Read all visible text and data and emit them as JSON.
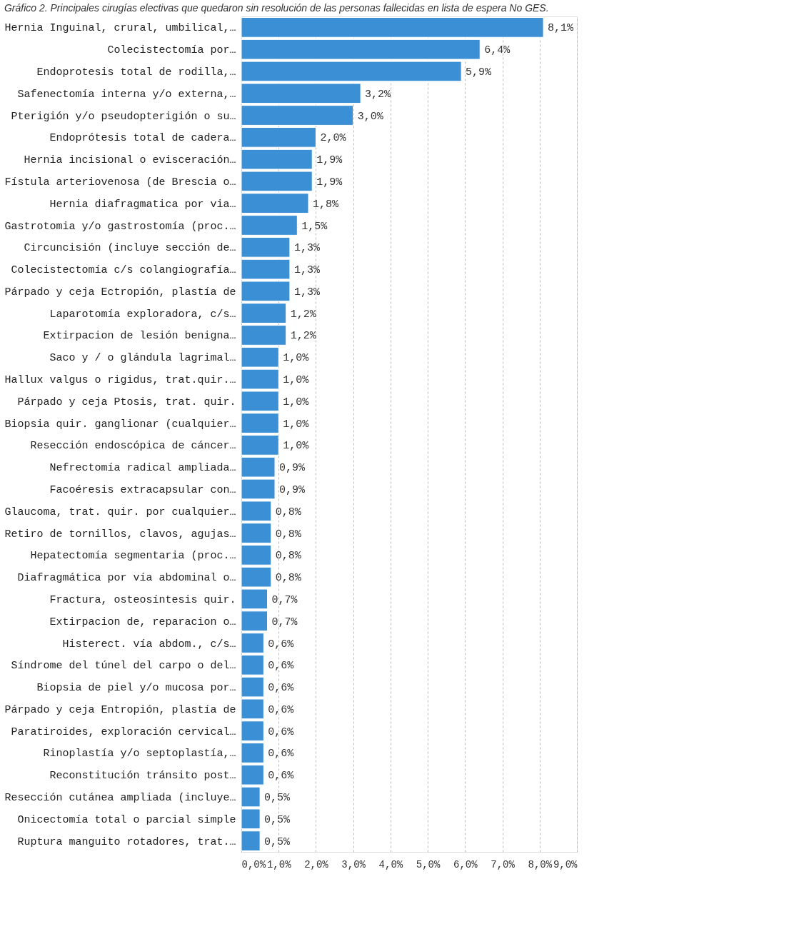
{
  "chart_data": {
    "type": "bar",
    "orientation": "horizontal",
    "title": "Gráfico 2. Principales cirugías electivas que quedaron sin resolución de las personas fallecidas en lista de espera No GES.",
    "categories": [
      "Hernia Inguinal, crural, umbilical,…",
      "Colecistectomía por…",
      "Endoprotesis total de rodilla,…",
      "Safenectomía interna y/o externa,…",
      "Pterigión y/o pseudopterigión o su…",
      "Endoprótesis total de cadera…",
      "Hernia incisional o evisceración…",
      "Fístula arteriovenosa (de Brescia o…",
      "Hernia diafragmatica por via…",
      "Gastrotomia y/o gastrostomía (proc.…",
      "Circuncisión (incluye sección de…",
      "Colecistectomía c/s colangiografía…",
      "Párpado y ceja Ectropión, plastía de",
      "Laparotomía exploradora, c/s…",
      "Extirpacion de lesión benigna…",
      "Saco y / o glándula lagrimal…",
      "Hallux valgus o rigidus, trat.quir.…",
      "Párpado y ceja Ptosis, trat. quir.",
      "Biopsia quir. ganglionar (cualquier…",
      "Resección endoscópica de cáncer…",
      "Nefrectomía radical ampliada…",
      "Facoéresis extracapsular con…",
      "Glaucoma, trat. quir. por cualquier…",
      "Retiro de tornillos, clavos, agujas…",
      "Hepatectomía segmentaria (proc.…",
      "Diafragmática por vía abdominal o…",
      "Fractura, osteosíntesis quir.",
      "Extirpacion de, reparacion o…",
      "Histerect. vía abdom., c/s…",
      "Síndrome del túnel del carpo o del…",
      "Biopsia de piel y/o mucosa por…",
      "Párpado y ceja Entropión, plastía de",
      "Paratiroides, exploración cervical…",
      "Rinoplastía y/o septoplastía,…",
      "Reconstitución  tránsito post…",
      "Resección cutánea ampliada (incluye…",
      "Onicectomía total o parcial simple",
      "Ruptura manguito rotadores, trat.…"
    ],
    "values": [
      8.1,
      6.4,
      5.9,
      3.2,
      3.0,
      2.0,
      1.9,
      1.9,
      1.8,
      1.5,
      1.3,
      1.3,
      1.3,
      1.2,
      1.2,
      1.0,
      1.0,
      1.0,
      1.0,
      1.0,
      0.9,
      0.9,
      0.8,
      0.8,
      0.8,
      0.8,
      0.7,
      0.7,
      0.6,
      0.6,
      0.6,
      0.6,
      0.6,
      0.6,
      0.6,
      0.5,
      0.5,
      0.5
    ],
    "value_labels": [
      "8,1%",
      "6,4%",
      "5,9%",
      "3,2%",
      "3,0%",
      "2,0%",
      "1,9%",
      "1,9%",
      "1,8%",
      "1,5%",
      "1,3%",
      "1,3%",
      "1,3%",
      "1,2%",
      "1,2%",
      "1,0%",
      "1,0%",
      "1,0%",
      "1,0%",
      "1,0%",
      "0,9%",
      "0,9%",
      "0,8%",
      "0,8%",
      "0,8%",
      "0,8%",
      "0,7%",
      "0,7%",
      "0,6%",
      "0,6%",
      "0,6%",
      "0,6%",
      "0,6%",
      "0,6%",
      "0,6%",
      "0,5%",
      "0,5%",
      "0,5%"
    ],
    "color": "#3b8fd4",
    "xlim": [
      0,
      9
    ],
    "xticks": [
      {
        "value": 0,
        "label": "0,0%"
      },
      {
        "value": 1,
        "label": "1,0%"
      },
      {
        "value": 2,
        "label": "2,0%"
      },
      {
        "value": 3,
        "label": "3,0%"
      },
      {
        "value": 4,
        "label": "4,0%"
      },
      {
        "value": 5,
        "label": "5,0%"
      },
      {
        "value": 6,
        "label": "6,0%"
      },
      {
        "value": 7,
        "label": "7,0%"
      },
      {
        "value": 8,
        "label": "8,0%"
      },
      {
        "value": 9,
        "label": "9,0%"
      }
    ],
    "grid": "x"
  }
}
